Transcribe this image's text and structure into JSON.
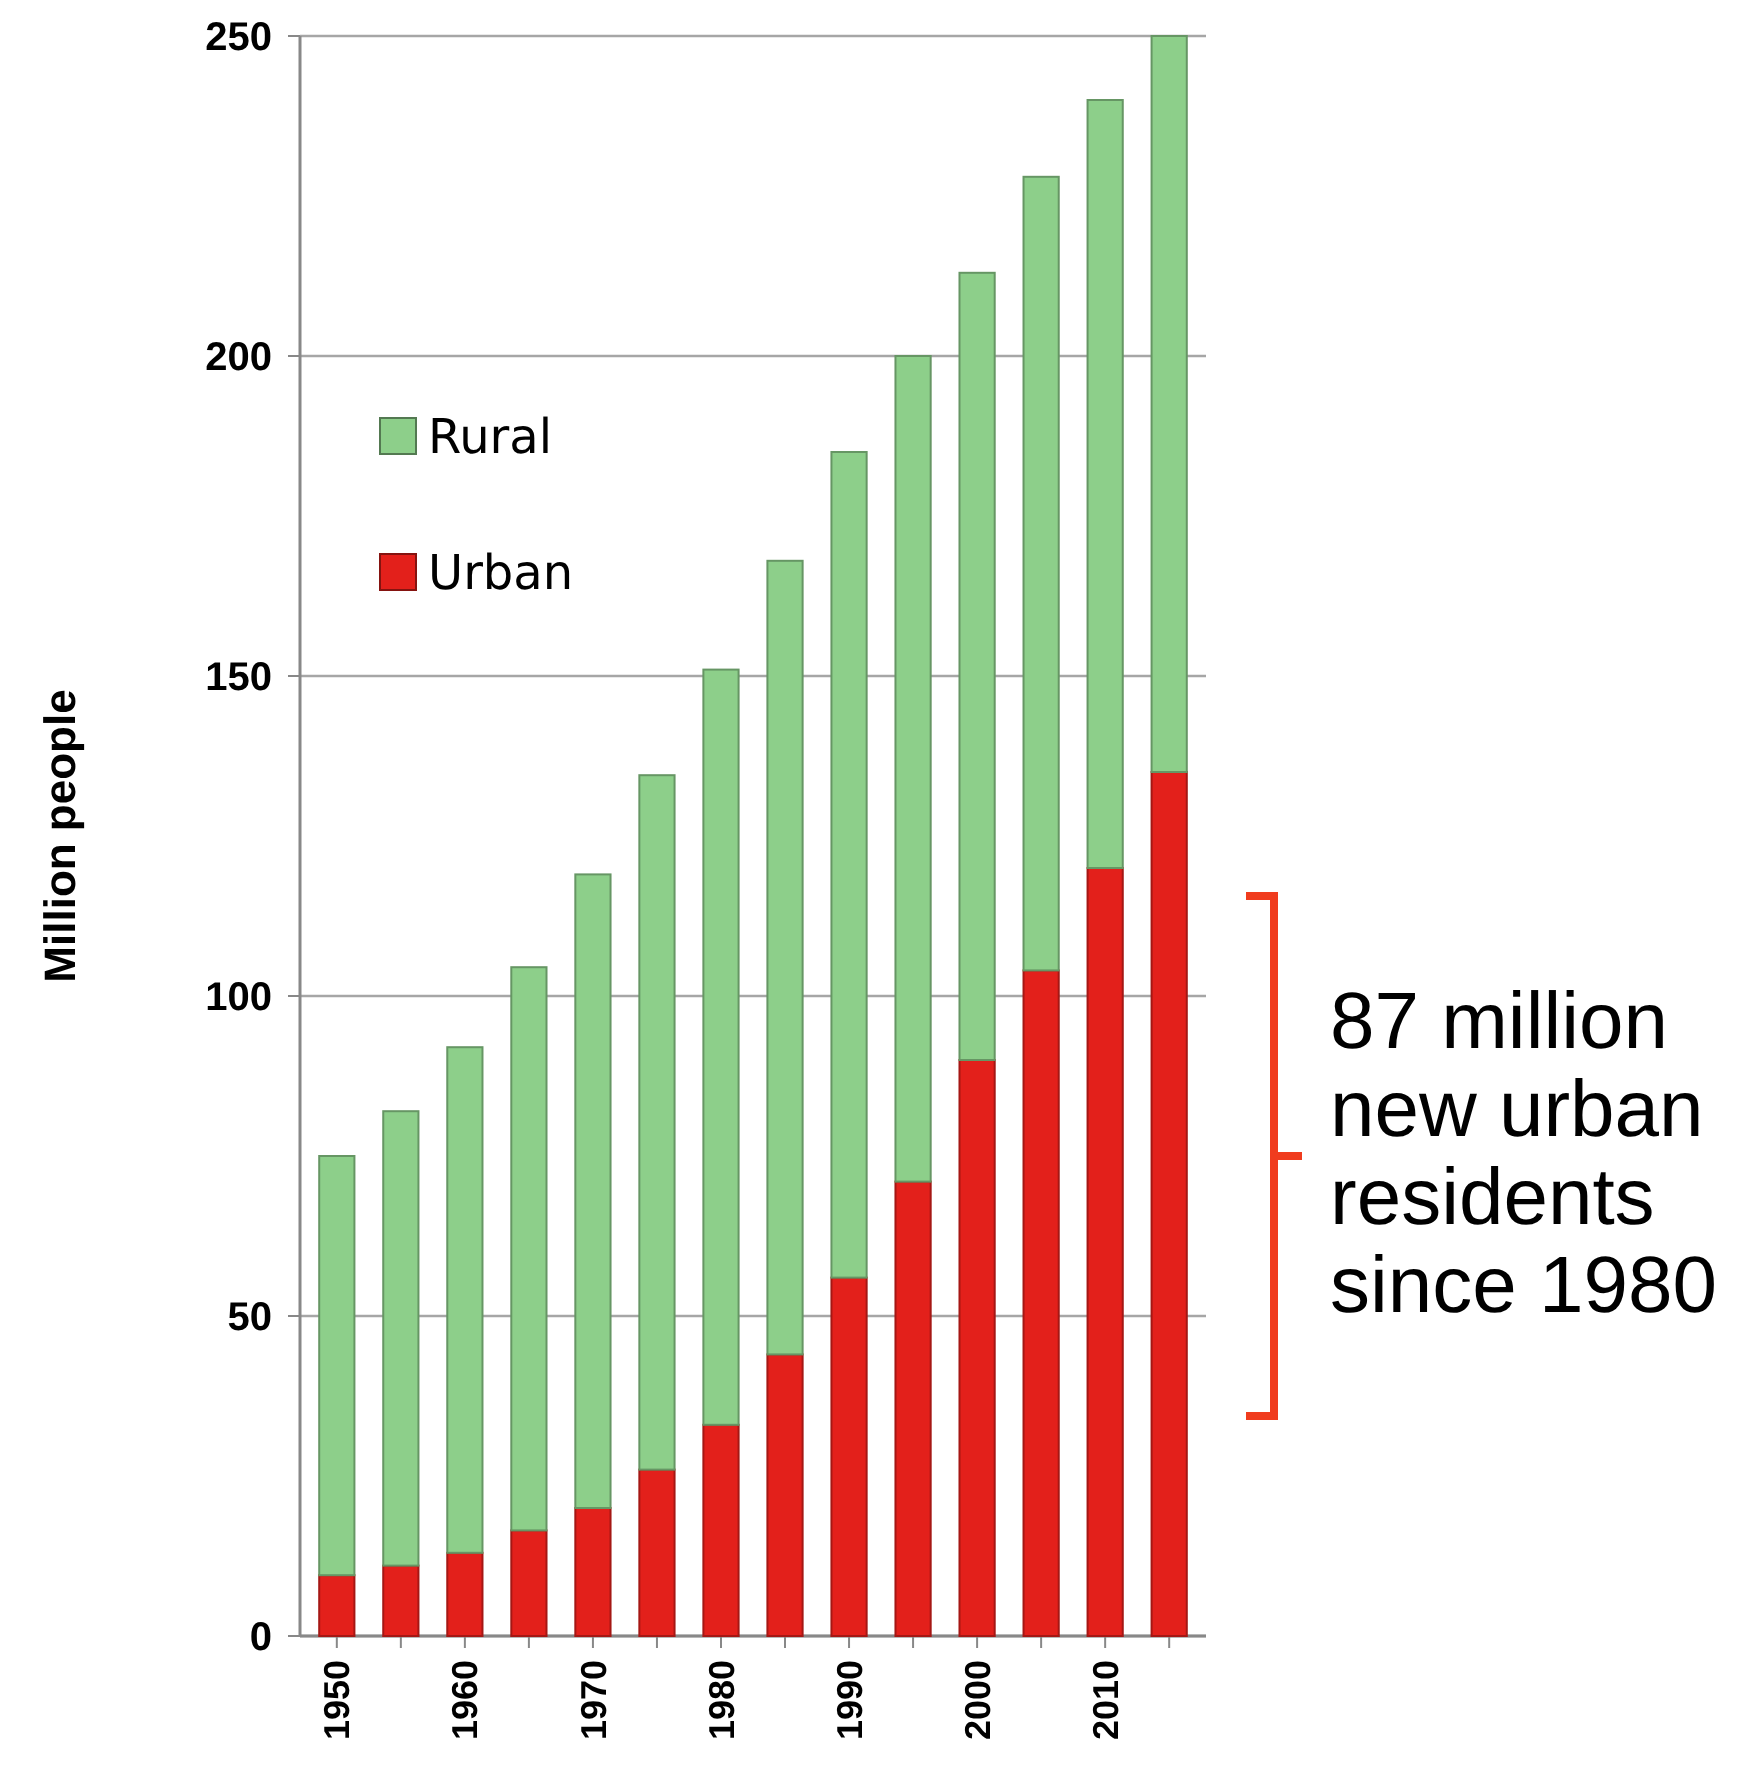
{
  "chart_data": {
    "type": "bar",
    "stacked": true,
    "ylabel": "Million people",
    "categories": [
      "1950",
      null,
      "1960",
      null,
      "1970",
      null,
      "1980",
      null,
      "1990",
      null,
      "2000",
      null,
      "2010",
      null
    ],
    "series": [
      {
        "name": "Urban",
        "color": "#e3201b",
        "values": [
          9.5,
          11,
          13,
          16.5,
          20,
          26,
          33,
          44,
          56,
          71,
          90,
          104,
          120,
          135
        ]
      },
      {
        "name": "Rural",
        "color": "#8dcf8a",
        "values": [
          65.5,
          71,
          79,
          88,
          99,
          108.5,
          118,
          124,
          129,
          129,
          123,
          124,
          120,
          115
        ]
      }
    ],
    "ylim": [
      0,
      250
    ],
    "yticks": [
      0,
      50,
      100,
      150,
      200,
      250
    ],
    "grid": "y",
    "legend": "top left",
    "annotations": [
      "87 million new urban residents since 1980"
    ]
  }
}
